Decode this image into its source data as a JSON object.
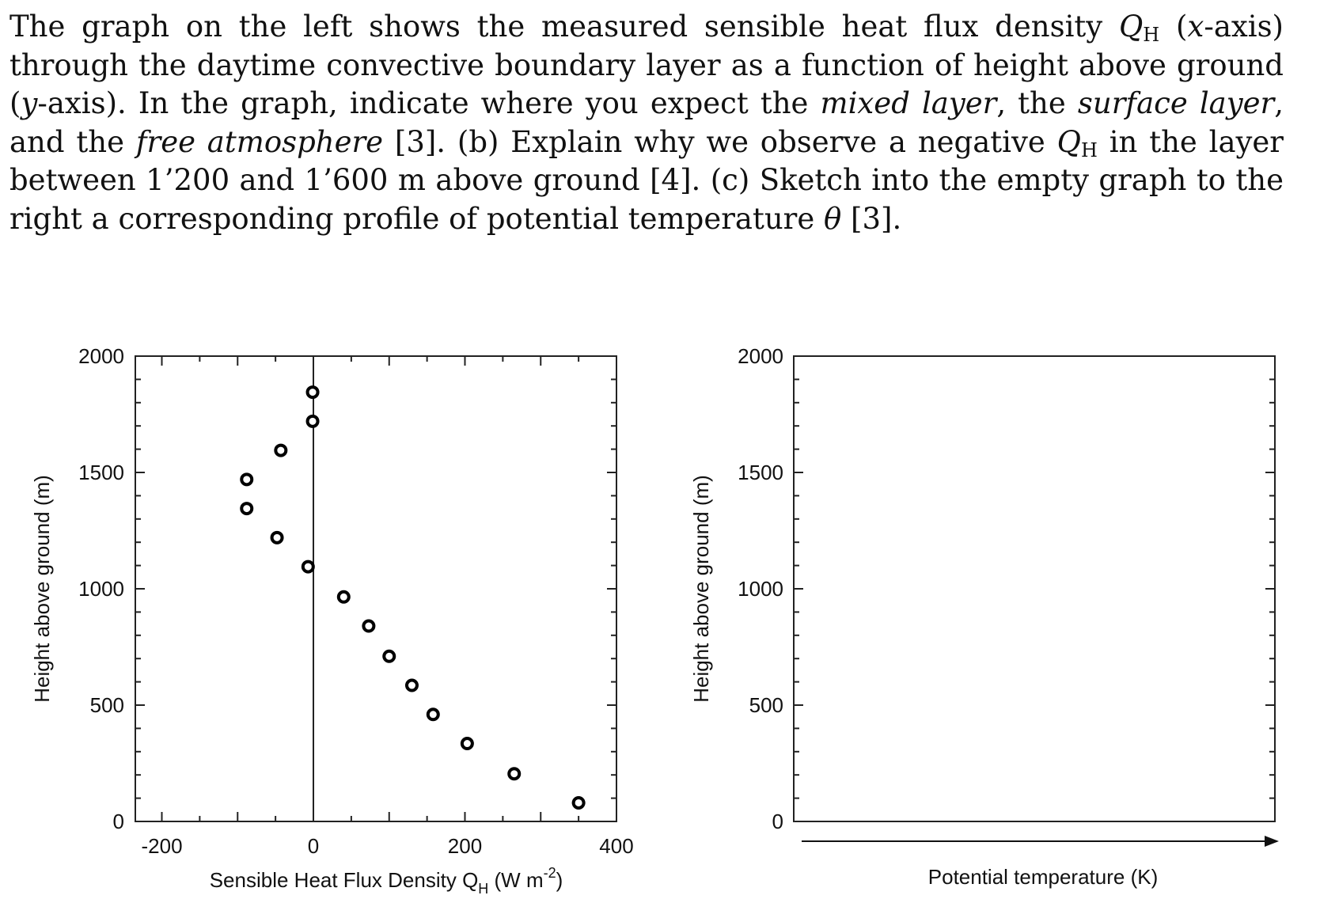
{
  "question": {
    "p1": "The graph on the left shows the measured sensible heat flux density ",
    "qh_var": "Q",
    "qh_sub": "H",
    "p2": " (",
    "x_var": "x",
    "p3": "-axis) through the daytime convective boundary layer as a function of height above ground (",
    "y_var": "y",
    "p4": "-axis). In the graph, indicate where you expect the ",
    "mixed": "mixed layer",
    "p5": ", the ",
    "surface": "surface layer",
    "p6": ", and the ",
    "free": "free atmosphere",
    "p7": " [3]. (b) Explain why we observe a negative ",
    "qh_var2": "Q",
    "qh_sub2": "H",
    "p8": " in the layer between 1’200 and 1’600 m above ground [4]. (c) Sketch into the empty graph to the right a corresponding profile of potential temperature ",
    "theta": "θ",
    "p9": " [3]."
  },
  "chart_data": [
    {
      "type": "scatter",
      "xlabel": "Sensible Heat Flux Density Q",
      "xlabel_sub": "H",
      "xlabel_unit": " (W m",
      "xlabel_sup": "-2",
      "xlabel_end": ")",
      "ylabel": "Height above ground (m)",
      "xlim": [
        -235,
        400
      ],
      "ylim": [
        0,
        2000
      ],
      "xticks": [
        "-200",
        "0",
        "200",
        "400"
      ],
      "yticks": [
        "0",
        "500",
        "1000",
        "1500",
        "2000"
      ],
      "marker": "open-circle",
      "zero_line": true,
      "points": [
        {
          "x": 350,
          "y": 80
        },
        {
          "x": 265,
          "y": 205
        },
        {
          "x": 203,
          "y": 335
        },
        {
          "x": 158,
          "y": 460
        },
        {
          "x": 130,
          "y": 585
        },
        {
          "x": 100,
          "y": 710
        },
        {
          "x": 73,
          "y": 840
        },
        {
          "x": 40,
          "y": 965
        },
        {
          "x": -7,
          "y": 1095
        },
        {
          "x": -48,
          "y": 1220
        },
        {
          "x": -88,
          "y": 1345
        },
        {
          "x": -88,
          "y": 1470
        },
        {
          "x": -43,
          "y": 1595
        },
        {
          "x": -1,
          "y": 1720
        },
        {
          "x": -1,
          "y": 1845
        }
      ]
    },
    {
      "type": "scatter",
      "xlabel": "Potential temperature (K)",
      "ylabel": "Height above ground (m)",
      "ylim": [
        0,
        2000
      ],
      "yticks": [
        "0",
        "500",
        "1000",
        "1500",
        "2000"
      ],
      "points": []
    }
  ]
}
